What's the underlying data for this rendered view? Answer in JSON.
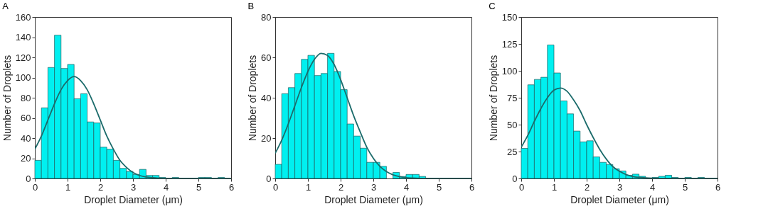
{
  "chart_data": [
    {
      "type": "histogram",
      "title": "A",
      "xlabel": "Droplet Diameter (μm)",
      "ylabel": "Number of Droplets",
      "xlim": [
        0,
        6
      ],
      "xticks": [
        0,
        1,
        2,
        3,
        4,
        5,
        6
      ],
      "ylim": [
        0,
        160
      ],
      "yticks": [
        0,
        20,
        40,
        60,
        80,
        100,
        120,
        140,
        160
      ],
      "grid": false,
      "bins": [
        0,
        0.2,
        0.4,
        0.6,
        0.8,
        1,
        1.2,
        1.4,
        1.6,
        1.8,
        2,
        2.2,
        2.4,
        2.6,
        2.8,
        3,
        3.2,
        3.4,
        3.6,
        3.8,
        4,
        4.2,
        4.4,
        4.6,
        4.8,
        5,
        5.2,
        5.4,
        5.6,
        5.8,
        6
      ],
      "series": [
        {
          "color": "#00f0f0",
          "values": [
            18,
            70,
            110,
            142,
            109,
            113,
            79,
            84,
            56,
            55,
            31,
            29,
            18,
            10,
            7,
            4,
            9,
            3,
            3,
            1,
            0,
            1,
            0,
            0,
            0,
            1,
            1,
            0,
            1,
            0
          ]
        },
        {
          "type": "line",
          "color": "#1b6b6b",
          "x": [
            0,
            0.2,
            0.4,
            0.6,
            0.8,
            1,
            1.2,
            1.4,
            1.6,
            1.8,
            2,
            2.2,
            2.4,
            2.6,
            2.8,
            3,
            3.2,
            3.4,
            3.6,
            3.8,
            4,
            4.4,
            6
          ],
          "values": [
            29,
            42,
            58,
            74,
            88,
            97,
            101,
            97,
            88,
            74,
            58,
            42,
            29,
            18,
            11,
            6,
            3,
            1.5,
            0.7,
            0.3,
            0.1,
            0,
            0
          ]
        }
      ]
    },
    {
      "type": "histogram",
      "title": "B",
      "xlabel": "Droplet Diameter (μm)",
      "ylabel": "Number of Droplets",
      "xlim": [
        0,
        6
      ],
      "xticks": [
        0,
        1,
        2,
        3,
        4,
        5,
        6
      ],
      "ylim": [
        0,
        80
      ],
      "yticks": [
        0,
        20,
        40,
        60,
        80
      ],
      "grid": false,
      "bins": [
        0,
        0.2,
        0.4,
        0.6,
        0.8,
        1,
        1.2,
        1.4,
        1.6,
        1.8,
        2,
        2.2,
        2.4,
        2.6,
        2.8,
        3,
        3.2,
        3.4,
        3.6,
        3.8,
        4,
        4.2,
        4.4,
        4.6,
        4.8,
        5,
        5.2,
        5.4,
        5.6,
        5.8,
        6
      ],
      "series": [
        {
          "color": "#00f0f0",
          "values": [
            7,
            42,
            45,
            52,
            59,
            61,
            51,
            52,
            62,
            53,
            44,
            27,
            21,
            15,
            8,
            8,
            6,
            0,
            3,
            1,
            2,
            2,
            1,
            0,
            0,
            0,
            0,
            0,
            0,
            0
          ]
        },
        {
          "type": "line",
          "color": "#1b6b6b",
          "x": [
            0,
            0.2,
            0.4,
            0.6,
            0.8,
            1,
            1.2,
            1.4,
            1.6,
            1.8,
            2,
            2.2,
            2.4,
            2.6,
            2.8,
            3,
            3.2,
            3.4,
            3.6,
            3.8,
            4,
            4.2,
            4.6,
            6
          ],
          "values": [
            12.5,
            19,
            27,
            36,
            45,
            53,
            59,
            62,
            61,
            56.5,
            49,
            40,
            31,
            23,
            15.5,
            10,
            6,
            3.4,
            1.8,
            0.9,
            0.4,
            0.2,
            0,
            0
          ]
        }
      ]
    },
    {
      "type": "histogram",
      "title": "C",
      "xlabel": "Droplet Diameter (μm)",
      "ylabel": "Number of Droplets",
      "xlim": [
        0,
        6
      ],
      "xticks": [
        0,
        1,
        2,
        3,
        4,
        5,
        6
      ],
      "ylim": [
        0,
        150
      ],
      "yticks": [
        0,
        25,
        50,
        75,
        100,
        125,
        150
      ],
      "grid": false,
      "bins": [
        0,
        0.2,
        0.4,
        0.6,
        0.8,
        1,
        1.2,
        1.4,
        1.6,
        1.8,
        2,
        2.2,
        2.4,
        2.6,
        2.8,
        3,
        3.2,
        3.4,
        3.6,
        3.8,
        4,
        4.2,
        4.4,
        4.6,
        4.8,
        5,
        5.2,
        5.4,
        5.6,
        5.8,
        6
      ],
      "series": [
        {
          "color": "#00f0f0",
          "values": [
            28,
            87,
            92,
            94,
            124,
            98,
            72,
            60,
            44,
            34,
            35,
            20,
            15,
            13,
            9,
            7,
            3,
            4,
            2,
            0,
            1,
            2,
            3,
            1,
            0,
            1,
            0,
            1,
            0,
            0
          ]
        },
        {
          "type": "line",
          "color": "#1b6b6b",
          "x": [
            0,
            0.2,
            0.4,
            0.6,
            0.8,
            1,
            1.2,
            1.4,
            1.6,
            1.8,
            2,
            2.2,
            2.4,
            2.6,
            2.8,
            3,
            3.2,
            3.4,
            3.6,
            3.8,
            4,
            4.4,
            6
          ],
          "values": [
            29,
            40,
            53,
            65,
            75,
            82,
            84,
            81,
            73,
            63,
            50,
            38,
            27,
            18,
            11,
            6.7,
            3.7,
            1.9,
            1,
            0.5,
            0.2,
            0,
            0
          ]
        }
      ]
    }
  ]
}
